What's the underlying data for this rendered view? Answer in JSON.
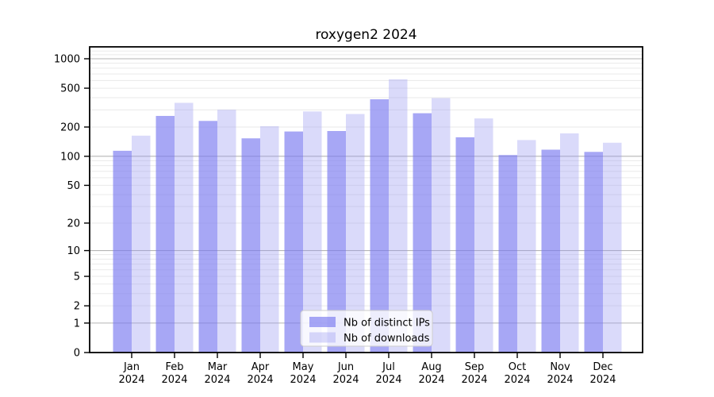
{
  "chart_data": {
    "type": "bar",
    "title": "roxygen2 2024",
    "categories": [
      "Jan 2024",
      "Feb 2024",
      "Mar 2024",
      "Apr 2024",
      "May 2024",
      "Jun 2024",
      "Jul 2024",
      "Aug 2024",
      "Sep 2024",
      "Oct 2024",
      "Nov 2024",
      "Dec 2024"
    ],
    "series": [
      {
        "name": "Nb of distinct IPs",
        "color": "#7878f0",
        "fill_opacity": 0.65,
        "rendered_color": "#aaaaf5",
        "values": [
          114,
          260,
          231,
          153,
          180,
          182,
          385,
          277,
          157,
          103,
          117,
          111
        ]
      },
      {
        "name": "Nb of downloads",
        "color": "#9696f0",
        "fill_opacity": 0.35,
        "rendered_color": "#dadafa",
        "values": [
          163,
          354,
          301,
          204,
          289,
          272,
          617,
          396,
          245,
          147,
          172,
          138
        ]
      }
    ],
    "y_ticks": [
      0,
      1,
      2,
      5,
      10,
      20,
      50,
      100,
      200,
      500,
      1000
    ],
    "y_scale": "log1p",
    "ylim": [
      0,
      1300
    ],
    "xlabel": "",
    "ylabel": "",
    "grid": true,
    "grid_minor_color": "#eaeaea",
    "grid_major_color": "#b5b5b5",
    "axis_color": "#000000",
    "legend_position": "lower-center",
    "legend_bg": "#ffffff",
    "legend_border": "#cccccc"
  }
}
